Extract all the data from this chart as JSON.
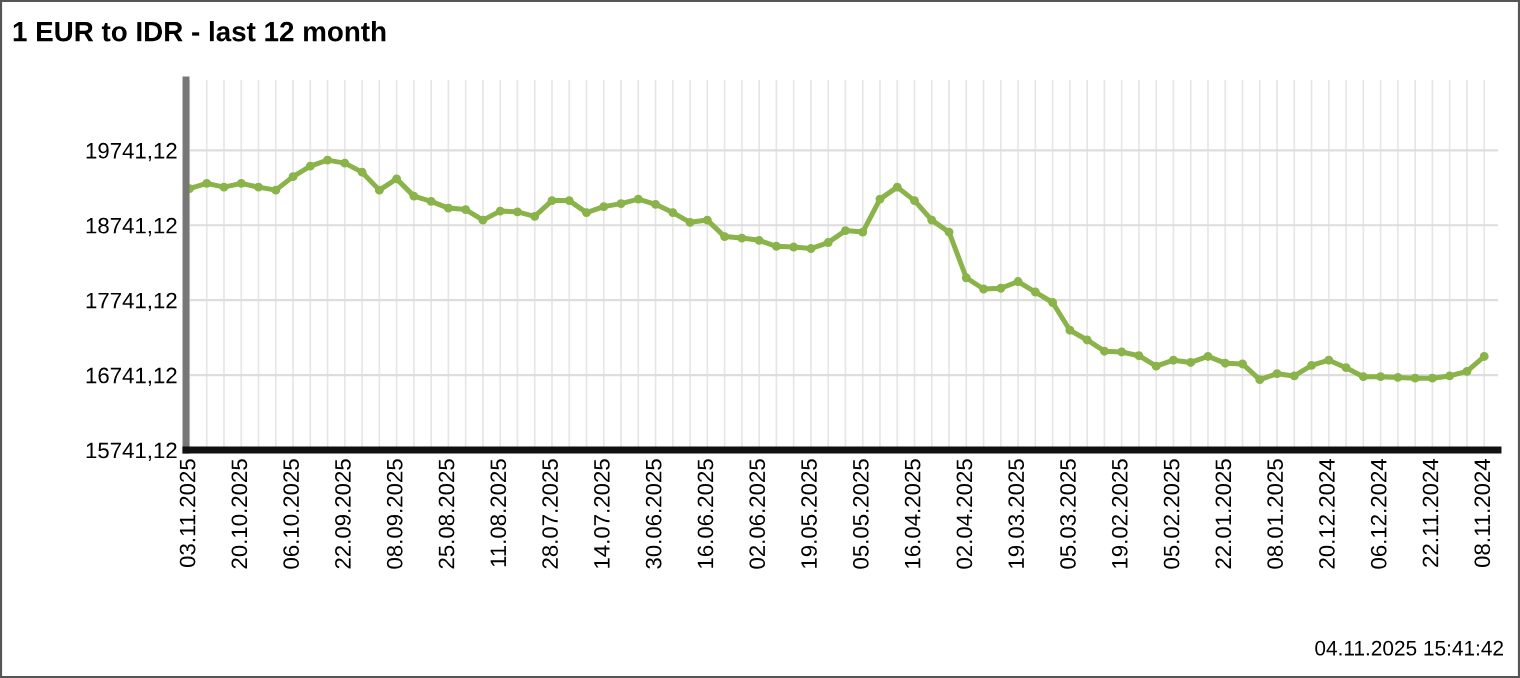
{
  "chart_data": {
    "type": "line",
    "title": "1 EUR to IDR - last 12 month",
    "categories": [
      "03.11.2025",
      null,
      null,
      "20.10.2025",
      null,
      null,
      "06.10.2025",
      null,
      null,
      "22.09.2025",
      null,
      null,
      "08.09.2025",
      null,
      null,
      "25.08.2025",
      null,
      null,
      "11.08.2025",
      null,
      null,
      "28.07.2025",
      null,
      null,
      "14.07.2025",
      null,
      null,
      "30.06.2025",
      null,
      null,
      "16.06.2025",
      null,
      null,
      "02.06.2025",
      null,
      null,
      "19.05.2025",
      null,
      null,
      "05.05.2025",
      null,
      null,
      "16.04.2025",
      null,
      null,
      "02.04.2025",
      null,
      null,
      "19.03.2025",
      null,
      null,
      "05.03.2025",
      null,
      null,
      "19.02.2025",
      null,
      null,
      "05.02.2025",
      null,
      null,
      "22.01.2025",
      null,
      null,
      "08.01.2025",
      null,
      null,
      "20.12.2024",
      null,
      null,
      "06.12.2024",
      null,
      null,
      "22.11.2024",
      null,
      null,
      "08.11.2024"
    ],
    "series": [
      {
        "color": "#8ab34a",
        "values": [
          19230,
          19300,
          19250,
          19300,
          19250,
          19210,
          19390,
          19530,
          19610,
          19570,
          19450,
          19210,
          19360,
          19130,
          19060,
          18970,
          18950,
          18810,
          18930,
          18920,
          18860,
          19070,
          19070,
          18910,
          18990,
          19030,
          19090,
          19020,
          18910,
          18780,
          18810,
          18590,
          18570,
          18540,
          18460,
          18450,
          18430,
          18510,
          18670,
          18650,
          19090,
          19250,
          19070,
          18810,
          18650,
          18040,
          17890,
          17900,
          17990,
          17850,
          17710,
          17340,
          17210,
          17060,
          17050,
          17000,
          16860,
          16940,
          16910,
          16990,
          16900,
          16890,
          16680,
          16760,
          16730,
          16870,
          16940,
          16840,
          16720,
          16720,
          16710,
          16700,
          16700,
          16730,
          16790,
          16990
        ]
      }
    ],
    "ylim": [
      15741.12,
      20680
    ],
    "yticks": [
      {
        "value": 15741.12,
        "label": "15741,12"
      },
      {
        "value": 16741.12,
        "label": "16741,12"
      },
      {
        "value": 17741.12,
        "label": "17741,12"
      },
      {
        "value": 18741.12,
        "label": "18741,12"
      },
      {
        "value": 19741.12,
        "label": "19741,12"
      }
    ],
    "grid": true,
    "marker": "circle",
    "line_style": "solid",
    "legend": false,
    "annotations": [
      "04.11.2025 15:41:42"
    ]
  }
}
